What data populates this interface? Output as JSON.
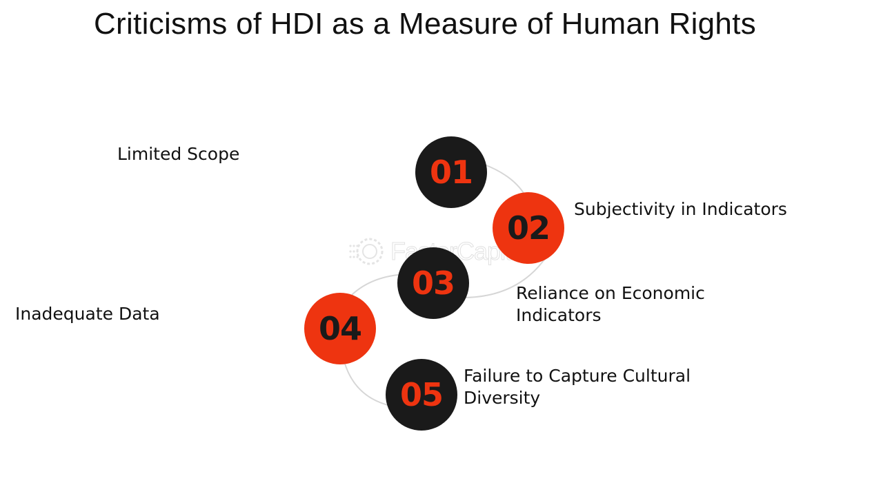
{
  "title": "Criticisms of HDI as a Measure of Human Rights",
  "watermark": {
    "text": "FasterCapital",
    "icon": "gear-logo-icon"
  },
  "colors": {
    "dark": "#1a1a1a",
    "accent": "#ee3410",
    "text": "#111111"
  },
  "items": [
    {
      "number": "01",
      "label": "Limited Scope",
      "circle_color": "dark",
      "number_color": "accent"
    },
    {
      "number": "02",
      "label": "Subjectivity in Indicators",
      "circle_color": "accent",
      "number_color": "dark"
    },
    {
      "number": "03",
      "label_line1": "Reliance on Economic",
      "label_line2": "Indicators",
      "circle_color": "dark",
      "number_color": "accent"
    },
    {
      "number": "04",
      "label": "Inadequate Data",
      "circle_color": "accent",
      "number_color": "dark"
    },
    {
      "number": "05",
      "label_line1": "Failure to Capture Cultural",
      "label_line2": "Diversity",
      "circle_color": "dark",
      "number_color": "accent"
    }
  ]
}
